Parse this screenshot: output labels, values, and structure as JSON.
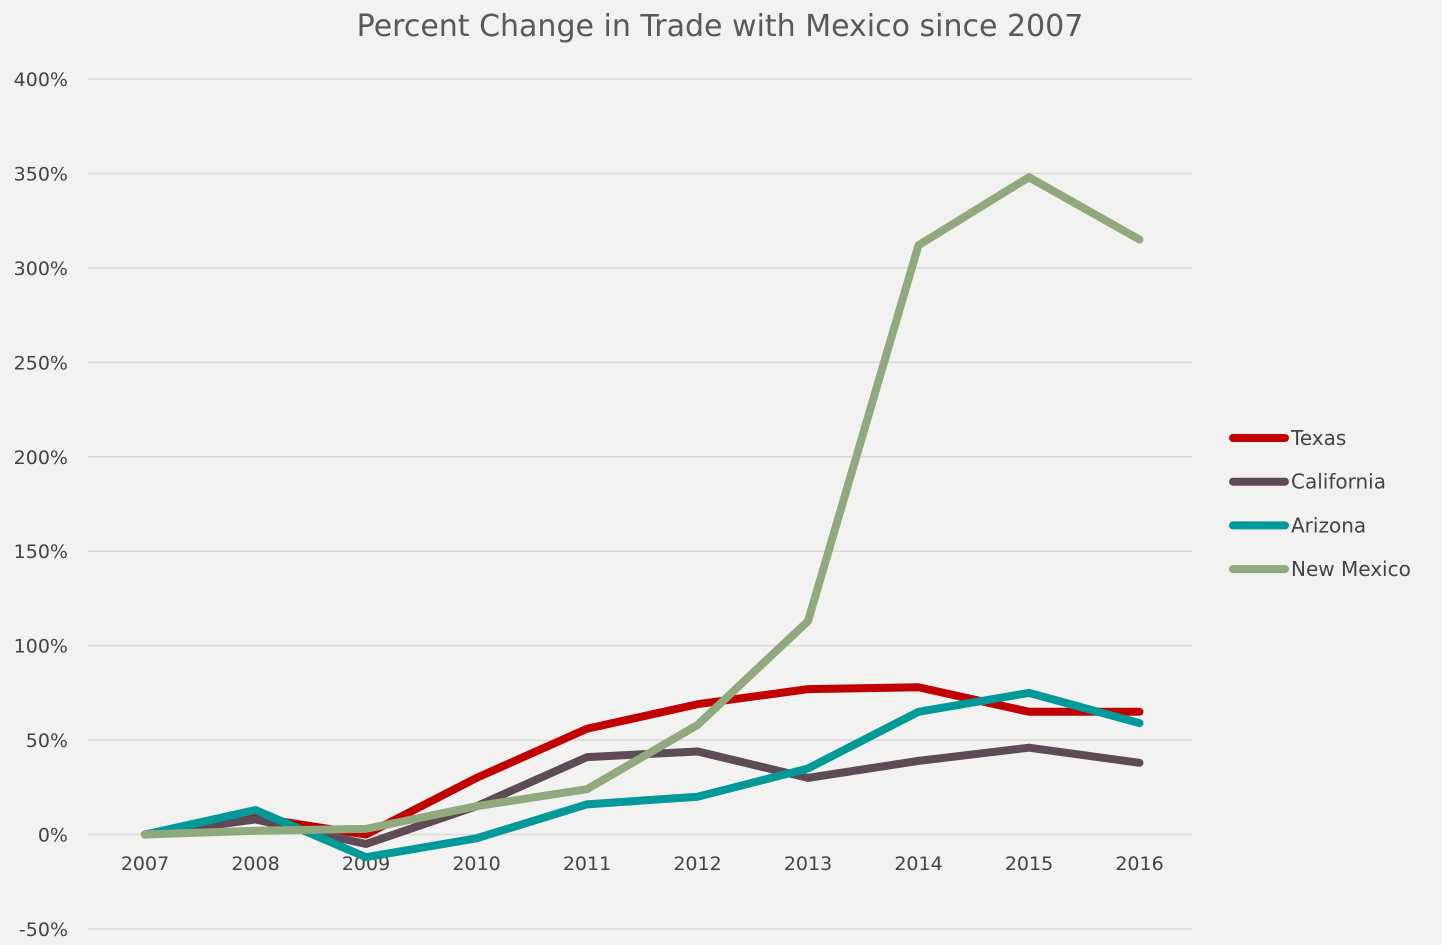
{
  "chart_data": {
    "type": "line",
    "title": "Percent Change in Trade with Mexico since 2007",
    "xlabel": "",
    "ylabel": "",
    "categories": [
      "2007",
      "2008",
      "2009",
      "2010",
      "2011",
      "2012",
      "2013",
      "2014",
      "2015",
      "2016"
    ],
    "ylim": [
      -50,
      400
    ],
    "yticks": [
      400,
      350,
      300,
      250,
      200,
      150,
      100,
      50,
      0,
      -50
    ],
    "ytick_labels": [
      "400%",
      "350%",
      "300%",
      "250%",
      "200%",
      "150%",
      "100%",
      "50%",
      "0%",
      "-50%"
    ],
    "grid": true,
    "legend_position": "right",
    "series": [
      {
        "name": "Texas",
        "color": "#c00000",
        "values": [
          0,
          9,
          0,
          30,
          56,
          69,
          77,
          78,
          65,
          65
        ]
      },
      {
        "name": "California",
        "color": "#5e4b56",
        "values": [
          0,
          8,
          -5,
          15,
          41,
          44,
          30,
          39,
          46,
          38
        ]
      },
      {
        "name": "Arizona",
        "color": "#009999",
        "values": [
          0,
          13,
          -12,
          -2,
          16,
          20,
          35,
          65,
          75,
          59
        ]
      },
      {
        "name": "New Mexico",
        "color": "#8faa7c",
        "values": [
          0,
          2,
          3,
          15,
          24,
          58,
          113,
          312,
          348,
          315
        ]
      }
    ]
  }
}
